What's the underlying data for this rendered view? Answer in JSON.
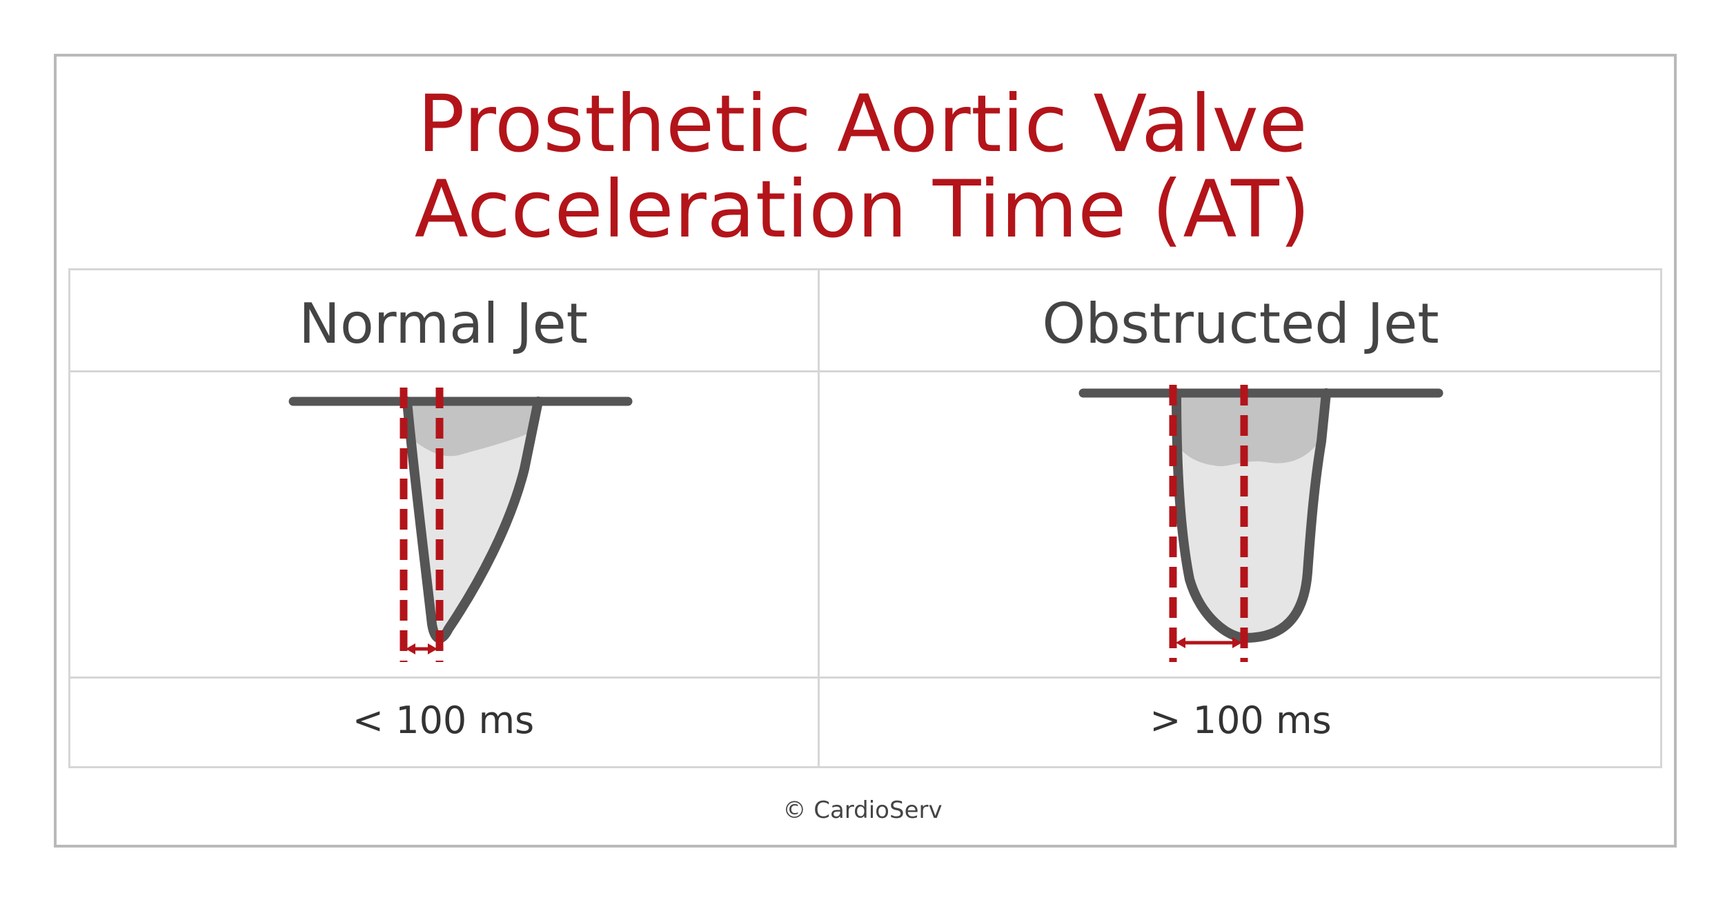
{
  "title": {
    "line1": "Prosthetic Aortic Valve",
    "line2": "Acceleration Time (AT)"
  },
  "columns": [
    {
      "heading": "Normal Jet",
      "value": "< 100 ms"
    },
    {
      "heading": "Obstructed Jet",
      "value": "> 100 ms"
    }
  ],
  "footer": {
    "copyright": "© CardioServ"
  },
  "colors": {
    "title": "#b3141a",
    "marker": "#b3141a",
    "border": "#b9b9b9",
    "grid": "#d6d6d6",
    "jet_outline": "#555555",
    "jet_fill_light": "#e5e5e5",
    "jet_fill_dark": "#c3c3c3"
  }
}
